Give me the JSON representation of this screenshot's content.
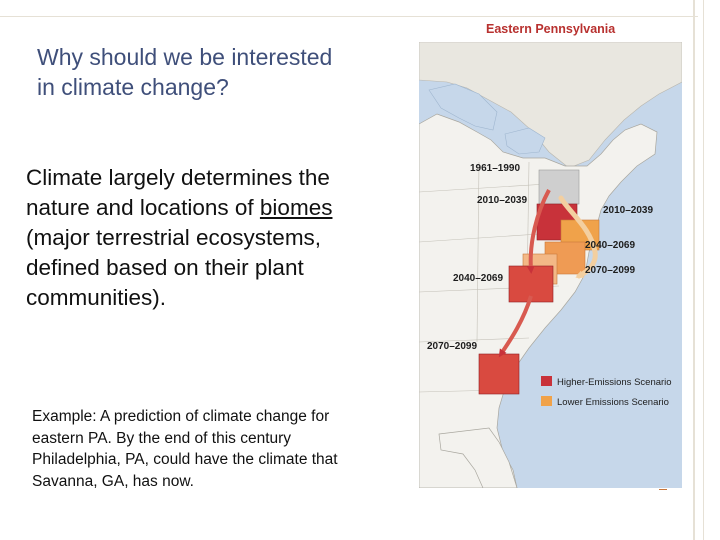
{
  "slide": {
    "title": "Why should we be interested in climate change?",
    "body_before": "Climate largely determines the nature and locations of ",
    "body_link": "biomes",
    "body_after": " (major terrestrial ecosystems, defined based on their plant communities).",
    "example": "Example: A prediction of climate change for eastern PA. By the end of this century Philadelphia, PA, could have the climate that Savanna, GA, has now."
  },
  "map": {
    "title": "Eastern Pennsylvania",
    "labels": {
      "p1961": "1961–1990",
      "p2010_left": "2010–2039",
      "p2010_right": "2010–2039",
      "p2040_left": "2040–2069",
      "p2040_right": "2040–2069",
      "p2070_right": "2070–2099",
      "p2070_left": "2070–2099"
    },
    "legend": {
      "higher": "Higher-Emissions Scenario",
      "lower": "Lower Emissions Scenario"
    },
    "colors": {
      "higher": "#c8323a",
      "lower": "#f0a24a",
      "current": "#cfcfcf",
      "water": "#c6d7ea",
      "land": "#f3f2ee"
    }
  }
}
